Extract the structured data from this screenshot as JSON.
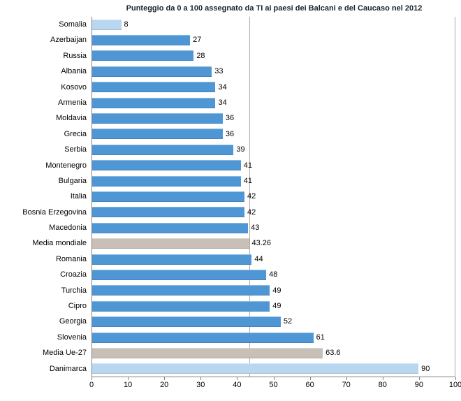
{
  "title": "Punteggio da 0 a 100 assegnato da TI ai paesi dei Balcani e del Caucaso nel 2012",
  "chart_data": {
    "type": "bar",
    "orientation": "horizontal",
    "title": "Punteggio da 0 a 100 assegnato da TI ai paesi dei Balcani e del Caucaso nel 2012",
    "xlabel": "",
    "ylabel": "",
    "xlim": [
      0,
      100
    ],
    "x_ticks": [
      0,
      10,
      20,
      30,
      40,
      50,
      60,
      70,
      80,
      90,
      100
    ],
    "grid": false,
    "legend": "none",
    "reference_line": {
      "value": 43.26,
      "meaning": "Media mondiale"
    },
    "colors": {
      "normal": "#4f96d5",
      "light": "#b9d7f0",
      "average": "#c8c0b6"
    },
    "bars": [
      {
        "label": "Somalia",
        "value": 8,
        "display": "8",
        "type": "light"
      },
      {
        "label": "Azerbaijan",
        "value": 27,
        "display": "27",
        "type": "normal"
      },
      {
        "label": "Russia",
        "value": 28,
        "display": "28",
        "type": "normal"
      },
      {
        "label": "Albania",
        "value": 33,
        "display": "33",
        "type": "normal"
      },
      {
        "label": "Kosovo",
        "value": 34,
        "display": "34",
        "type": "normal"
      },
      {
        "label": "Armenia",
        "value": 34,
        "display": "34",
        "type": "normal"
      },
      {
        "label": "Moldavia",
        "value": 36,
        "display": "36",
        "type": "normal"
      },
      {
        "label": "Grecia",
        "value": 36,
        "display": "36",
        "type": "normal"
      },
      {
        "label": "Serbia",
        "value": 39,
        "display": "39",
        "type": "normal"
      },
      {
        "label": "Montenegro",
        "value": 41,
        "display": "41",
        "type": "normal"
      },
      {
        "label": "Bulgaria",
        "value": 41,
        "display": "41",
        "type": "normal"
      },
      {
        "label": "Italia",
        "value": 42,
        "display": "42",
        "type": "normal"
      },
      {
        "label": "Bosnia Erzegovina",
        "value": 42,
        "display": "42",
        "type": "normal"
      },
      {
        "label": "Macedonia",
        "value": 43,
        "display": "43",
        "type": "normal"
      },
      {
        "label": "Media mondiale",
        "value": 43.26,
        "display": "43.26",
        "type": "average"
      },
      {
        "label": "Romania",
        "value": 44,
        "display": "44",
        "type": "normal"
      },
      {
        "label": "Croazia",
        "value": 48,
        "display": "48",
        "type": "normal"
      },
      {
        "label": "Turchia",
        "value": 49,
        "display": "49",
        "type": "normal"
      },
      {
        "label": "Cipro",
        "value": 49,
        "display": "49",
        "type": "normal"
      },
      {
        "label": "Georgia",
        "value": 52,
        "display": "52",
        "type": "normal"
      },
      {
        "label": "Slovenia",
        "value": 61,
        "display": "61",
        "type": "normal"
      },
      {
        "label": "Media Ue-27",
        "value": 63.6,
        "display": "63.6",
        "type": "average"
      },
      {
        "label": "Danimarca",
        "value": 90,
        "display": "90",
        "type": "light"
      }
    ]
  }
}
